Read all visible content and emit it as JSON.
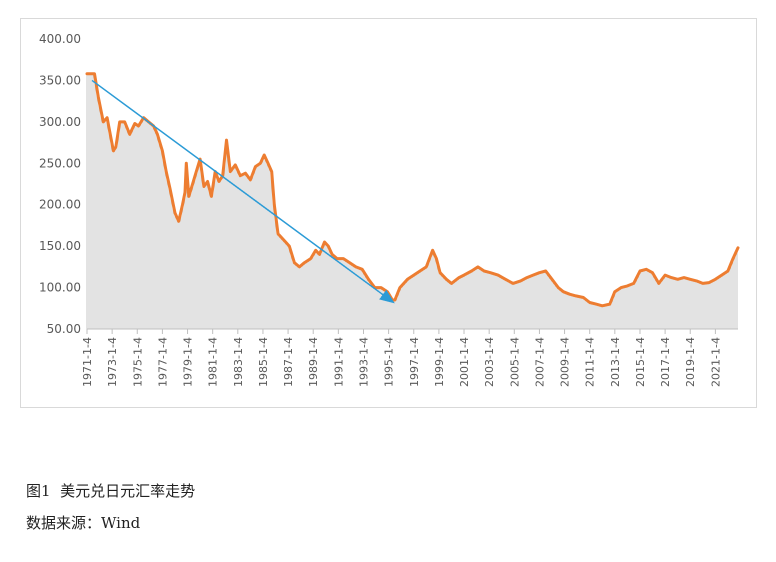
{
  "caption": {
    "label": "图1",
    "title": "美元兑日元汇率走势"
  },
  "source": "数据来源：Wind",
  "chart_data": {
    "type": "line",
    "title": "",
    "xlabel": "",
    "ylabel": "",
    "ylim": [
      50,
      400
    ],
    "y_ticks": [
      "400.00",
      "350.00",
      "300.00",
      "250.00",
      "200.00",
      "150.00",
      "100.00",
      "50.00"
    ],
    "x_ticks": [
      "1971-1-4",
      "1973-1-4",
      "1975-1-4",
      "1977-1-4",
      "1979-1-4",
      "1981-1-4",
      "1983-1-4",
      "1985-1-4",
      "1987-1-4",
      "1989-1-4",
      "1991-1-4",
      "1993-1-4",
      "1995-1-4",
      "1997-1-4",
      "1999-1-4",
      "2001-1-4",
      "2003-1-4",
      "2005-1-4",
      "2007-1-4",
      "2009-1-4",
      "2011-1-4",
      "2013-1-4",
      "2015-1-4",
      "2017-1-4",
      "2019-1-4",
      "2021-1-4"
    ],
    "x_range": [
      1971.0,
      2022.8
    ],
    "grid": false,
    "legend": "none",
    "series": [
      {
        "style": "line with gray area fill",
        "color": "#ed7d31",
        "fill": "#d0d0d0",
        "x": [
          1971.0,
          1971.6,
          1971.9,
          1972.3,
          1972.6,
          1973.1,
          1973.3,
          1973.6,
          1974.0,
          1974.4,
          1974.8,
          1975.1,
          1975.5,
          1975.9,
          1976.3,
          1976.6,
          1977.0,
          1977.3,
          1977.6,
          1978.0,
          1978.3,
          1978.6,
          1978.8,
          1978.9,
          1979.1,
          1979.4,
          1979.7,
          1980.0,
          1980.3,
          1980.6,
          1980.9,
          1981.2,
          1981.5,
          1981.8,
          1982.1,
          1982.4,
          1982.8,
          1983.2,
          1983.6,
          1984.0,
          1984.4,
          1984.8,
          1985.1,
          1985.4,
          1985.7,
          1985.9,
          1986.2,
          1986.5,
          1986.8,
          1987.1,
          1987.5,
          1987.9,
          1988.3,
          1988.8,
          1989.2,
          1989.5,
          1989.9,
          1990.2,
          1990.5,
          1990.9,
          1991.4,
          1991.9,
          1992.4,
          1992.9,
          1993.4,
          1993.9,
          1994.4,
          1994.9,
          1995.3,
          1995.5,
          1995.9,
          1996.5,
          1997.0,
          1997.5,
          1998.0,
          1998.5,
          1998.8,
          1999.1,
          1999.6,
          2000.0,
          2000.6,
          2001.0,
          2001.6,
          2002.1,
          2002.6,
          2003.1,
          2003.7,
          2004.3,
          2004.9,
          2005.5,
          2006.0,
          2006.5,
          2007.0,
          2007.5,
          2008.0,
          2008.5,
          2008.9,
          2009.4,
          2009.9,
          2010.5,
          2011.0,
          2011.5,
          2012.0,
          2012.6,
          2013.0,
          2013.5,
          2014.0,
          2014.5,
          2015.0,
          2015.5,
          2016.0,
          2016.5,
          2017.0,
          2017.5,
          2018.0,
          2018.5,
          2019.0,
          2019.5,
          2020.0,
          2020.5,
          2021.0,
          2021.5,
          2022.0,
          2022.4,
          2022.8
        ],
        "values": [
          358,
          358,
          330,
          300,
          305,
          265,
          270,
          300,
          300,
          285,
          298,
          295,
          305,
          300,
          295,
          285,
          265,
          240,
          220,
          190,
          180,
          200,
          215,
          250,
          210,
          225,
          240,
          255,
          222,
          228,
          210,
          240,
          228,
          235,
          278,
          240,
          248,
          235,
          238,
          230,
          246,
          250,
          260,
          250,
          240,
          200,
          165,
          160,
          155,
          150,
          130,
          125,
          130,
          135,
          145,
          140,
          155,
          150,
          140,
          135,
          135,
          130,
          125,
          122,
          110,
          100,
          100,
          95,
          85,
          85,
          100,
          110,
          115,
          120,
          125,
          145,
          135,
          118,
          110,
          105,
          112,
          115,
          120,
          125,
          120,
          118,
          115,
          110,
          105,
          108,
          112,
          115,
          118,
          120,
          110,
          100,
          95,
          92,
          90,
          88,
          82,
          80,
          78,
          80,
          95,
          100,
          102,
          105,
          120,
          122,
          118,
          105,
          115,
          112,
          110,
          112,
          110,
          108,
          105,
          106,
          110,
          115,
          120,
          135,
          148
        ]
      }
    ],
    "annotations": [
      {
        "type": "trend-arrow",
        "color": "#2b9bd6",
        "from": [
          1971.4,
          350
        ],
        "to": [
          1995.3,
          83
        ]
      }
    ]
  }
}
